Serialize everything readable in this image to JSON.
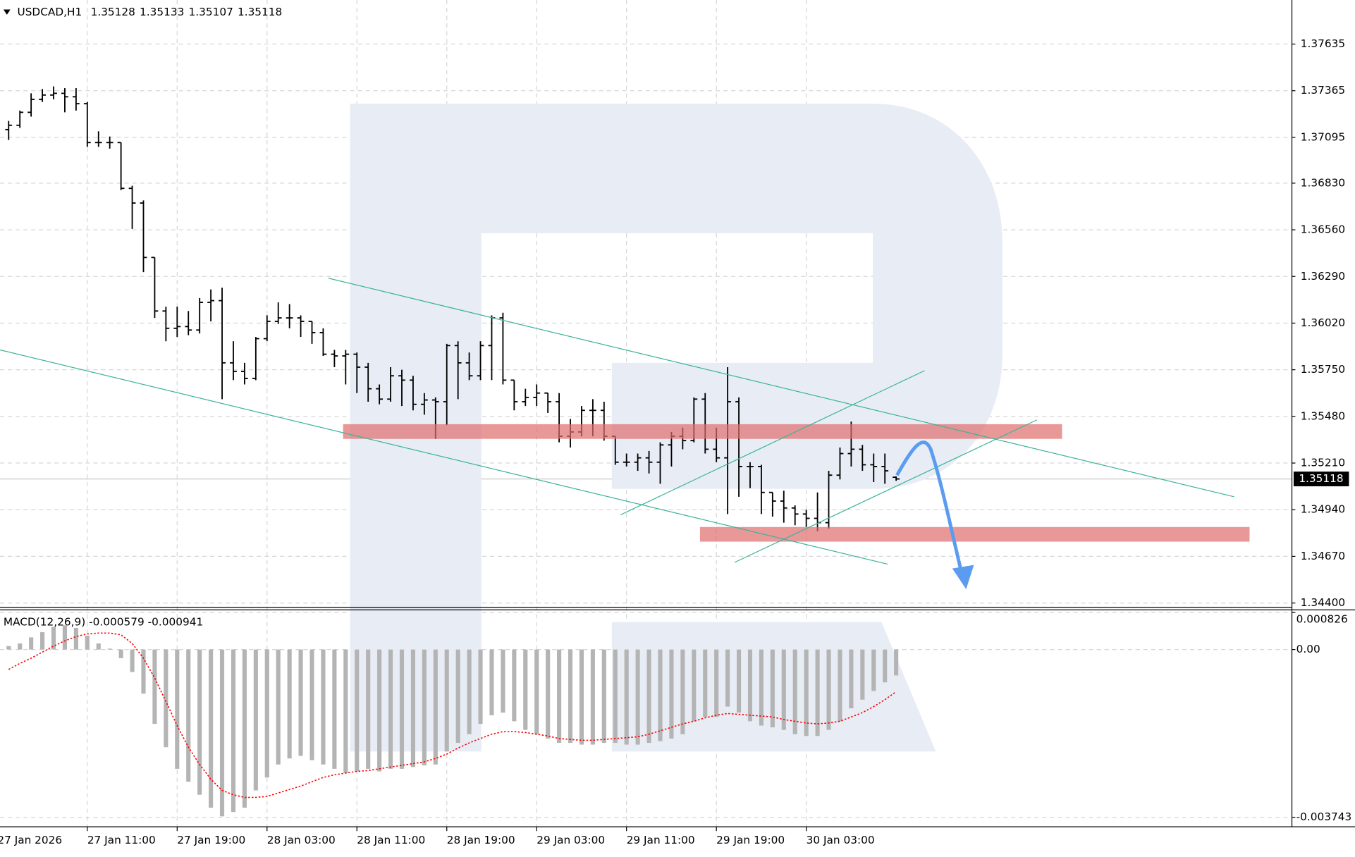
{
  "chart_data": [
    {
      "type": "ohlc",
      "title": "USDCAD,H1",
      "color": "#000000",
      "grid": true,
      "xlim": [
        -0.77,
        114.23
      ],
      "xticks": [
        {
          "value": -1,
          "label": "27 Jan 2026"
        },
        {
          "value": 7,
          "label": "27 Jan 11:00"
        },
        {
          "value": 15,
          "label": "27 Jan 19:00"
        },
        {
          "value": 23,
          "label": "28 Jan 03:00"
        },
        {
          "value": 31,
          "label": "28 Jan 11:00"
        },
        {
          "value": 39,
          "label": "28 Jan 19:00"
        },
        {
          "value": 47,
          "label": "29 Jan 03:00"
        },
        {
          "value": 55,
          "label": "29 Jan 11:00"
        },
        {
          "value": 63,
          "label": "29 Jan 19:00"
        },
        {
          "value": 71,
          "label": "30 Jan 03:00"
        }
      ],
      "ylim": [
        1.34375,
        1.3789
      ],
      "yticks": [
        1.37635,
        1.37365,
        1.37095,
        {
          "value": 1.3683,
          "label": "1.36830"
        },
        {
          "value": 1.3656,
          "label": "1.36560"
        },
        {
          "value": 1.3629,
          "label": "1.36290"
        },
        {
          "value": 1.3602,
          "label": "1.36020"
        },
        {
          "value": 1.3575,
          "label": "1.35750"
        },
        {
          "value": 1.3548,
          "label": "1.35480"
        },
        {
          "value": 1.3521,
          "label": "1.35210"
        },
        {
          "value": 1.3494,
          "label": "1.34940"
        },
        {
          "value": 1.3467,
          "label": "1.34670"
        },
        {
          "value": 1.344,
          "label": "1.34400"
        }
      ],
      "open": [
        1.3714,
        1.37165,
        1.3724,
        1.37315,
        1.3734,
        1.3735,
        1.3733,
        1.3729,
        1.37065,
        1.37065,
        1.37065,
        1.368,
        1.36715,
        1.364,
        1.3609,
        1.3599,
        1.36,
        1.3598,
        1.3614,
        1.3615,
        1.3579,
        1.3574,
        1.357,
        1.3593,
        1.3603,
        1.3605,
        1.3605,
        1.3603,
        1.35965,
        1.3584,
        1.3583,
        1.3584,
        1.35765,
        1.3564,
        1.3558,
        1.35715,
        1.3569,
        1.3555,
        1.35575,
        1.35565,
        1.3589,
        1.3579,
        1.35715,
        1.3589,
        1.3605,
        1.3569,
        1.35565,
        1.3559,
        1.35615,
        1.35565,
        1.35365,
        1.3539,
        1.35515,
        1.35515,
        1.35365,
        1.35215,
        1.35215,
        1.3524,
        1.35215,
        1.35315,
        1.35365,
        1.3534,
        1.3558,
        1.3529,
        1.3524,
        1.35565,
        1.3519,
        1.3519,
        1.3504,
        1.3499,
        1.3495,
        1.34915,
        1.3489,
        1.34865,
        1.3514,
        1.35265,
        1.3529,
        1.352,
        1.3519,
        1.35128
      ],
      "high": [
        1.3719,
        1.3725,
        1.3735,
        1.37375,
        1.3739,
        1.3738,
        1.3738,
        1.373,
        1.3713,
        1.371,
        1.37065,
        1.36815,
        1.3673,
        1.364,
        1.36115,
        1.36115,
        1.3609,
        1.36165,
        1.36215,
        1.36225,
        1.35915,
        1.3579,
        1.3594,
        1.36065,
        1.3614,
        1.3613,
        1.36065,
        1.3603,
        1.3599,
        1.35865,
        1.35865,
        1.3585,
        1.3579,
        1.35665,
        1.35765,
        1.3575,
        1.35715,
        1.35615,
        1.3559,
        1.359,
        1.35915,
        1.3585,
        1.35915,
        1.36065,
        1.3608,
        1.3569,
        1.3564,
        1.35665,
        1.35615,
        1.35615,
        1.35465,
        1.3554,
        1.3558,
        1.35565,
        1.35365,
        1.35265,
        1.35265,
        1.3528,
        1.3533,
        1.3539,
        1.35415,
        1.3559,
        1.35615,
        1.35415,
        1.35765,
        1.3559,
        1.35215,
        1.352,
        1.3504,
        1.3505,
        1.34965,
        1.3494,
        1.3504,
        1.35165,
        1.353,
        1.3545,
        1.35315,
        1.35265,
        1.35265,
        1.35133
      ],
      "low": [
        1.3708,
        1.3715,
        1.37215,
        1.373,
        1.37315,
        1.3724,
        1.3725,
        1.3704,
        1.3704,
        1.3703,
        1.3679,
        1.36565,
        1.36315,
        1.3605,
        1.35915,
        1.3594,
        1.3595,
        1.3596,
        1.3603,
        1.3558,
        1.3569,
        1.35665,
        1.3569,
        1.35915,
        1.36015,
        1.3599,
        1.3594,
        1.359,
        1.3583,
        1.35765,
        1.35665,
        1.35615,
        1.35565,
        1.3555,
        1.35565,
        1.3554,
        1.35515,
        1.3549,
        1.3535,
        1.3543,
        1.3558,
        1.3569,
        1.3569,
        1.3569,
        1.35665,
        1.35515,
        1.3554,
        1.3554,
        1.355,
        1.3533,
        1.353,
        1.35365,
        1.35365,
        1.3534,
        1.352,
        1.3519,
        1.35165,
        1.3515,
        1.3509,
        1.3519,
        1.3529,
        1.3533,
        1.35265,
        1.35215,
        1.34915,
        1.35015,
        1.35065,
        1.34915,
        1.349,
        1.34865,
        1.3485,
        1.3484,
        1.34815,
        1.3483,
        1.35115,
        1.3519,
        1.35165,
        1.351,
        1.3509,
        1.35107
      ],
      "close": [
        1.37165,
        1.3724,
        1.37315,
        1.3734,
        1.3735,
        1.3733,
        1.3729,
        1.37065,
        1.37065,
        1.37065,
        1.368,
        1.36715,
        1.364,
        1.3609,
        1.3599,
        1.36,
        1.3598,
        1.3614,
        1.3615,
        1.3579,
        1.3574,
        1.357,
        1.3593,
        1.3603,
        1.3605,
        1.3605,
        1.3603,
        1.35965,
        1.3584,
        1.3583,
        1.3584,
        1.35765,
        1.3564,
        1.3558,
        1.35715,
        1.3569,
        1.3555,
        1.35575,
        1.35565,
        1.3589,
        1.3579,
        1.35715,
        1.3589,
        1.3605,
        1.3569,
        1.35565,
        1.3559,
        1.35615,
        1.35565,
        1.35365,
        1.3539,
        1.35515,
        1.35515,
        1.35365,
        1.35215,
        1.35215,
        1.3524,
        1.35215,
        1.35315,
        1.35365,
        1.3534,
        1.3558,
        1.3529,
        1.3524,
        1.35565,
        1.3519,
        1.3519,
        1.3504,
        1.3499,
        1.3495,
        1.34915,
        1.3489,
        1.34865,
        1.3514,
        1.35265,
        1.3529,
        1.352,
        1.3519,
        1.35165,
        1.35118
      ]
    },
    {
      "type": "macd",
      "title": "MACD(12,26,9)",
      "color": "#b4b4b4",
      "signal_color": "#ff0000",
      "grid": true,
      "ylim": [
        -0.003743,
        0.000826
      ],
      "yticks": [
        0.000826,
        {
          "value": 0,
          "label": "0.00"
        },
        -0.003743
      ],
      "values": [
        7.7e-05,
        0.000135,
        0.00027,
        0.000386,
        0.000502,
        0.00054,
        0.000482,
        0.000309,
        0.000135,
        1.9e-05,
        -0.000193,
        -0.000502,
        -0.000984,
        -0.001659,
        -0.00218,
        -0.002662,
        -0.002951,
        -0.003241,
        -0.00353,
        -0.003723,
        -0.003627,
        -0.00353,
        -0.003144,
        -0.002855,
        -0.002566,
        -0.002431,
        -0.002373,
        -0.002469,
        -0.002566,
        -0.002662,
        -0.002758,
        -0.00272,
        -0.002662,
        -0.00272,
        -0.002662,
        -0.002662,
        -0.002623,
        -0.002585,
        -0.002566,
        -0.002276,
        -0.002083,
        -0.00189,
        -0.001659,
        -0.001466,
        -0.001408,
        -0.001601,
        -0.001794,
        -0.00189,
        -0.001987,
        -0.002083,
        -0.002083,
        -0.002122,
        -0.002122,
        -0.002083,
        -0.002083,
        -0.002122,
        -0.002122,
        -0.002083,
        -0.002045,
        -0.001987,
        -0.00189,
        -0.001601,
        -0.001505,
        -0.001505,
        -0.001273,
        -0.001408,
        -0.001601,
        -0.001698,
        -0.001736,
        -0.001794,
        -0.00189,
        -0.001929,
        -0.001929,
        -0.001794,
        -0.001601,
        -0.001312,
        -0.001119,
        -0.000926,
        -0.000733,
        -0.000579
      ],
      "signal": [
        -0.000444,
        -0.000309,
        -0.000193,
        -5.8e-05,
        7.7e-05,
        0.000193,
        0.000289,
        0.000347,
        0.000367,
        0.000367,
        0.000328,
        0.000135,
        -0.000193,
        -0.000637,
        -0.001157,
        -0.001698,
        -0.00218,
        -0.002566,
        -0.002894,
        -0.003144,
        -0.003241,
        -0.003299,
        -0.003299,
        -0.003279,
        -0.003202,
        -0.003125,
        -0.003048,
        -0.002951,
        -0.002855,
        -0.002797,
        -0.002758,
        -0.00272,
        -0.002701,
        -0.002662,
        -0.002623,
        -0.002585,
        -0.002546,
        -0.002508,
        -0.002431,
        -0.002334,
        -0.002199,
        -0.002083,
        -0.001987,
        -0.00189,
        -0.001833,
        -0.001833,
        -0.001852,
        -0.00189,
        -0.001929,
        -0.001987,
        -0.002006,
        -0.002025,
        -0.002025,
        -0.002006,
        -0.001987,
        -0.001968,
        -0.001948,
        -0.00189,
        -0.001813,
        -0.001736,
        -0.001659,
        -0.001601,
        -0.001524,
        -0.001466,
        -0.001427,
        -0.001447,
        -0.001466,
        -0.001485,
        -0.001505,
        -0.001562,
        -0.001601,
        -0.00164,
        -0.001659,
        -0.00164,
        -0.001601,
        -0.001505,
        -0.001408,
        -0.001273,
        -0.001119,
        -0.000941
      ]
    }
  ]
}
